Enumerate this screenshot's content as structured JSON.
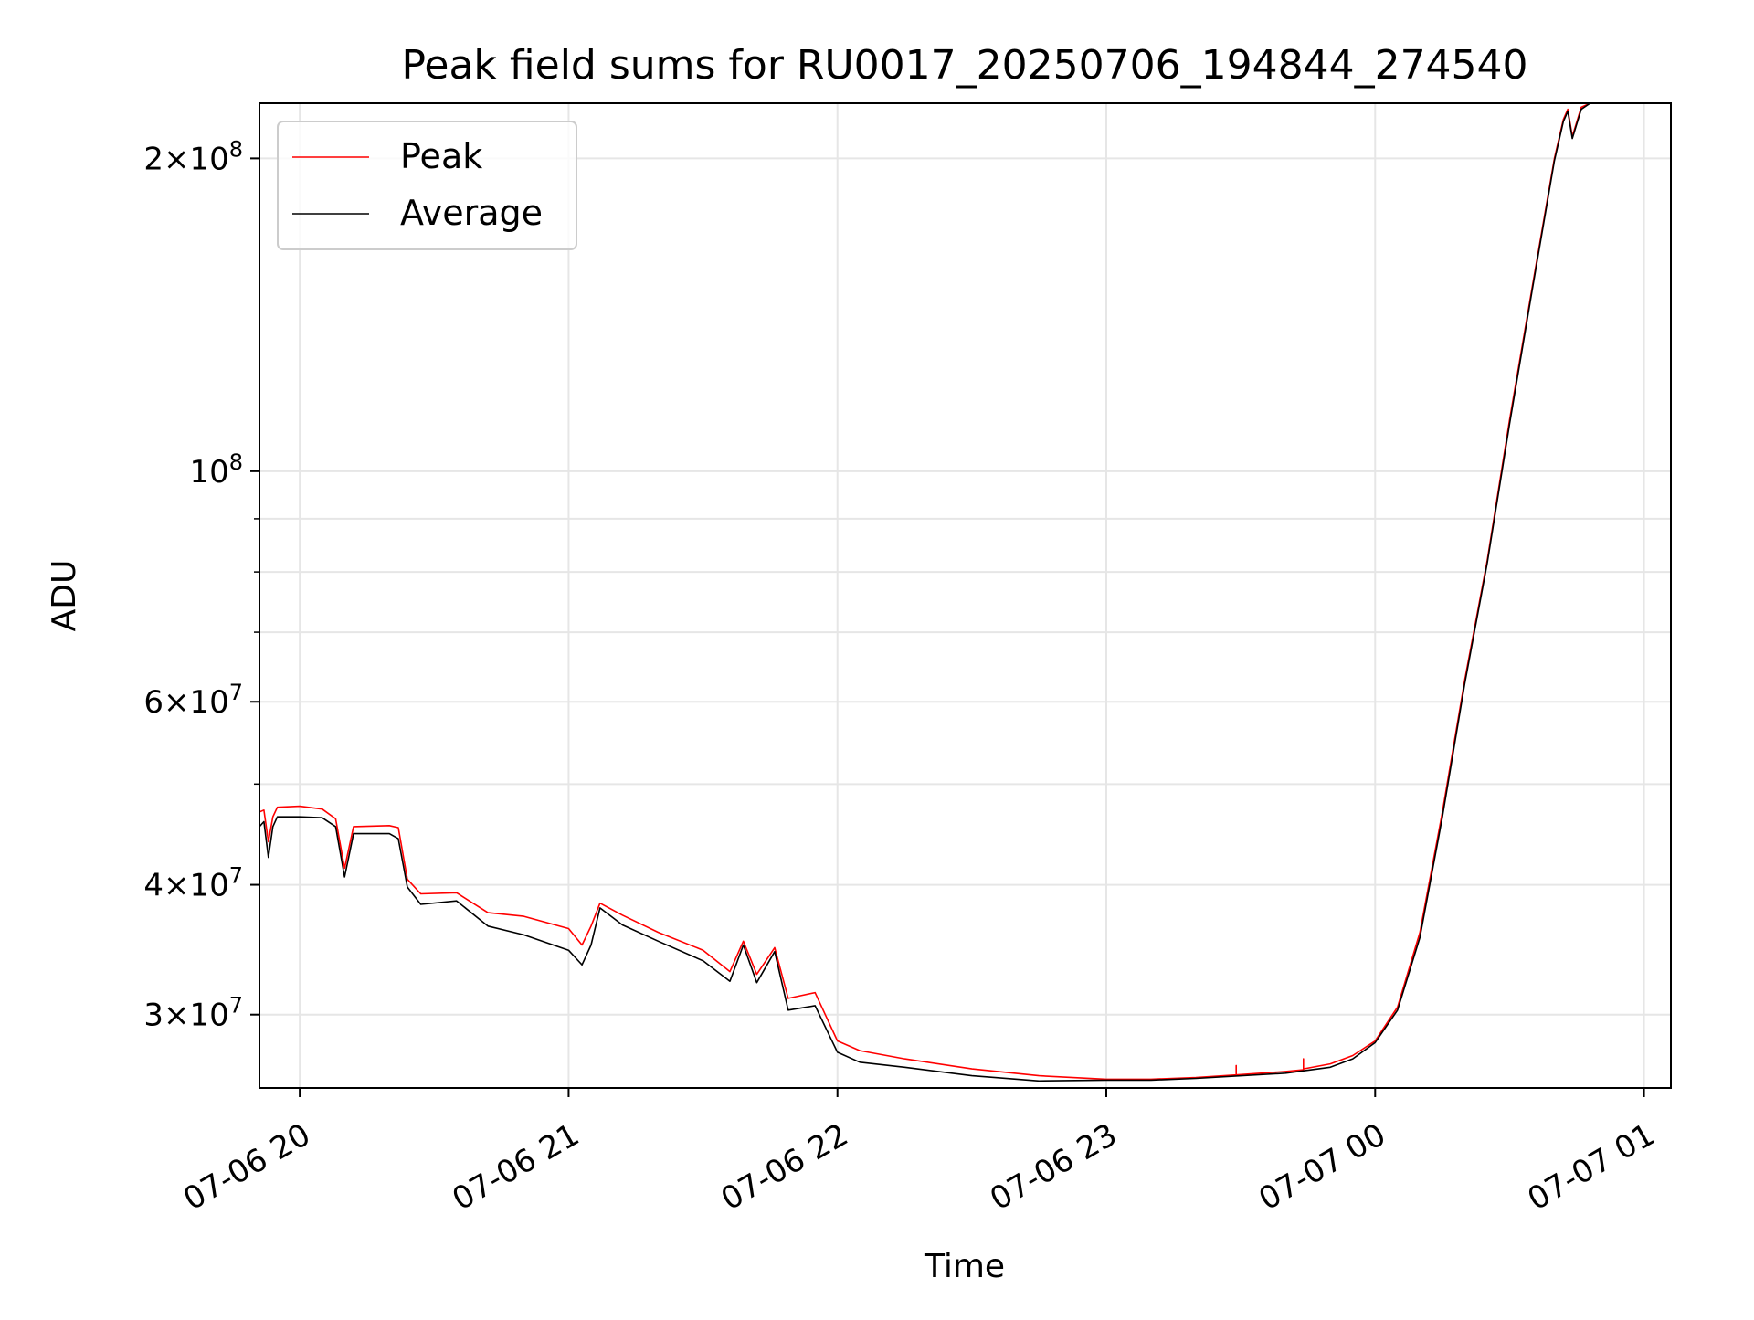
{
  "chart_data": {
    "type": "line",
    "title": "Peak field sums for RU0017_20250706_194844_274540",
    "xlabel": "Time",
    "ylabel": "ADU",
    "yscale": "log",
    "grid": true,
    "legend_position": "upper-left",
    "xlim": [
      "2025-07-06 19:51",
      "2025-07-07 01:06"
    ],
    "ylim": [
      25500000,
      226000000
    ],
    "x_ticks": [
      {
        "value": "2025-07-06 20:00",
        "label": "07-06 20"
      },
      {
        "value": "2025-07-06 21:00",
        "label": "07-06 21"
      },
      {
        "value": "2025-07-06 22:00",
        "label": "07-06 22"
      },
      {
        "value": "2025-07-06 23:00",
        "label": "07-06 23"
      },
      {
        "value": "2025-07-07 00:00",
        "label": "07-07 00"
      },
      {
        "value": "2025-07-07 01:00",
        "label": "07-07 01"
      }
    ],
    "y_ticks": [
      {
        "value": 30000000,
        "mantissa": "3",
        "exp": "7"
      },
      {
        "value": 40000000,
        "mantissa": "4",
        "exp": "7"
      },
      {
        "value": 60000000,
        "mantissa": "6",
        "exp": "7"
      },
      {
        "value": 100000000,
        "mantissa": "",
        "exp": "8"
      },
      {
        "value": 200000000,
        "mantissa": "2",
        "exp": "8"
      }
    ],
    "y_minor_ticks": [
      50000000,
      70000000,
      80000000,
      90000000
    ],
    "series": [
      {
        "name": "Peak",
        "color": "#ff0000",
        "points": [
          [
            "2025-07-06 19:51",
            47000000
          ],
          [
            "2025-07-06 19:52",
            47200000
          ],
          [
            "2025-07-06 19:53",
            44000000
          ],
          [
            "2025-07-06 19:54",
            46500000
          ],
          [
            "2025-07-06 19:55",
            47500000
          ],
          [
            "2025-07-06 20:00",
            47600000
          ],
          [
            "2025-07-06 20:05",
            47300000
          ],
          [
            "2025-07-06 20:08",
            46300000
          ],
          [
            "2025-07-06 20:10",
            41500000
          ],
          [
            "2025-07-06 20:12",
            45500000
          ],
          [
            "2025-07-06 20:20",
            45600000
          ],
          [
            "2025-07-06 20:22",
            45400000
          ],
          [
            "2025-07-06 20:24",
            40500000
          ],
          [
            "2025-07-06 20:27",
            39200000
          ],
          [
            "2025-07-06 20:35",
            39300000
          ],
          [
            "2025-07-06 20:42",
            37600000
          ],
          [
            "2025-07-06 20:50",
            37300000
          ],
          [
            "2025-07-06 21:00",
            36300000
          ],
          [
            "2025-07-06 21:03",
            35000000
          ],
          [
            "2025-07-06 21:05",
            36500000
          ],
          [
            "2025-07-06 21:07",
            38400000
          ],
          [
            "2025-07-06 21:12",
            37400000
          ],
          [
            "2025-07-06 21:20",
            36000000
          ],
          [
            "2025-07-06 21:30",
            34600000
          ],
          [
            "2025-07-06 21:36",
            33000000
          ],
          [
            "2025-07-06 21:39",
            35300000
          ],
          [
            "2025-07-06 21:42",
            32800000
          ],
          [
            "2025-07-06 21:46",
            34800000
          ],
          [
            "2025-07-06 21:49",
            31100000
          ],
          [
            "2025-07-06 21:55",
            31500000
          ],
          [
            "2025-07-06 22:00",
            28300000
          ],
          [
            "2025-07-06 22:05",
            27700000
          ],
          [
            "2025-07-06 22:15",
            27200000
          ],
          [
            "2025-07-06 22:30",
            26600000
          ],
          [
            "2025-07-06 22:45",
            26200000
          ],
          [
            "2025-07-06 23:00",
            26000000
          ],
          [
            "2025-07-06 23:10",
            26000000
          ],
          [
            "2025-07-06 23:20",
            26100000
          ],
          [
            "2025-07-06 23:29",
            26250000
          ],
          [
            "2025-07-06 23:29",
            26800000
          ],
          [
            "2025-07-06 23:29",
            26250000
          ],
          [
            "2025-07-06 23:40",
            26450000
          ],
          [
            "2025-07-06 23:44",
            26550000
          ],
          [
            "2025-07-06 23:44",
            27200000
          ],
          [
            "2025-07-06 23:44",
            26600000
          ],
          [
            "2025-07-06 23:50",
            26900000
          ],
          [
            "2025-07-06 23:55",
            27400000
          ],
          [
            "2025-07-07 00:00",
            28300000
          ],
          [
            "2025-07-07 00:05",
            30500000
          ],
          [
            "2025-07-07 00:10",
            36000000
          ],
          [
            "2025-07-07 00:15",
            47000000
          ],
          [
            "2025-07-07 00:20",
            63000000
          ],
          [
            "2025-07-07 00:25",
            82000000
          ],
          [
            "2025-07-07 00:30",
            112000000
          ],
          [
            "2025-07-07 00:35",
            150000000
          ],
          [
            "2025-07-07 00:40",
            200000000
          ],
          [
            "2025-07-07 00:42",
            218000000
          ],
          [
            "2025-07-07 00:43",
            223000000
          ],
          [
            "2025-07-07 00:44",
            210000000
          ],
          [
            "2025-07-07 00:46",
            224000000
          ],
          [
            "2025-07-07 00:48",
            226000000
          ]
        ]
      },
      {
        "name": "Average",
        "color": "#000000",
        "points": [
          [
            "2025-07-06 19:51",
            45500000
          ],
          [
            "2025-07-06 19:52",
            46000000
          ],
          [
            "2025-07-06 19:53",
            42500000
          ],
          [
            "2025-07-06 19:54",
            45500000
          ],
          [
            "2025-07-06 19:55",
            46500000
          ],
          [
            "2025-07-06 20:00",
            46500000
          ],
          [
            "2025-07-06 20:05",
            46400000
          ],
          [
            "2025-07-06 20:08",
            45500000
          ],
          [
            "2025-07-06 20:10",
            40700000
          ],
          [
            "2025-07-06 20:12",
            44800000
          ],
          [
            "2025-07-06 20:20",
            44800000
          ],
          [
            "2025-07-06 20:22",
            44300000
          ],
          [
            "2025-07-06 20:24",
            39800000
          ],
          [
            "2025-07-06 20:27",
            38300000
          ],
          [
            "2025-07-06 20:35",
            38600000
          ],
          [
            "2025-07-06 20:42",
            36500000
          ],
          [
            "2025-07-06 20:50",
            35800000
          ],
          [
            "2025-07-06 21:00",
            34600000
          ],
          [
            "2025-07-06 21:03",
            33500000
          ],
          [
            "2025-07-06 21:05",
            35000000
          ],
          [
            "2025-07-06 21:07",
            38000000
          ],
          [
            "2025-07-06 21:12",
            36600000
          ],
          [
            "2025-07-06 21:20",
            35300000
          ],
          [
            "2025-07-06 21:30",
            33800000
          ],
          [
            "2025-07-06 21:36",
            32300000
          ],
          [
            "2025-07-06 21:39",
            35000000
          ],
          [
            "2025-07-06 21:42",
            32200000
          ],
          [
            "2025-07-06 21:46",
            34500000
          ],
          [
            "2025-07-06 21:49",
            30300000
          ],
          [
            "2025-07-06 21:55",
            30600000
          ],
          [
            "2025-07-06 22:00",
            27600000
          ],
          [
            "2025-07-06 22:05",
            27000000
          ],
          [
            "2025-07-06 22:15",
            26700000
          ],
          [
            "2025-07-06 22:30",
            26200000
          ],
          [
            "2025-07-06 22:45",
            25900000
          ],
          [
            "2025-07-06 23:00",
            25950000
          ],
          [
            "2025-07-06 23:10",
            25950000
          ],
          [
            "2025-07-06 23:20",
            26050000
          ],
          [
            "2025-07-06 23:40",
            26350000
          ],
          [
            "2025-07-06 23:50",
            26700000
          ],
          [
            "2025-07-06 23:55",
            27200000
          ],
          [
            "2025-07-07 00:00",
            28200000
          ],
          [
            "2025-07-07 00:05",
            30300000
          ],
          [
            "2025-07-07 00:10",
            35600000
          ],
          [
            "2025-07-07 00:15",
            46500000
          ],
          [
            "2025-07-07 00:20",
            62500000
          ],
          [
            "2025-07-07 00:25",
            81500000
          ],
          [
            "2025-07-07 00:30",
            111000000
          ],
          [
            "2025-07-07 00:35",
            149000000
          ],
          [
            "2025-07-07 00:40",
            199000000
          ],
          [
            "2025-07-07 00:42",
            217000000
          ],
          [
            "2025-07-07 00:43",
            222000000
          ],
          [
            "2025-07-07 00:44",
            209000000
          ],
          [
            "2025-07-07 00:46",
            223000000
          ],
          [
            "2025-07-07 00:48",
            226000000
          ]
        ]
      }
    ]
  }
}
